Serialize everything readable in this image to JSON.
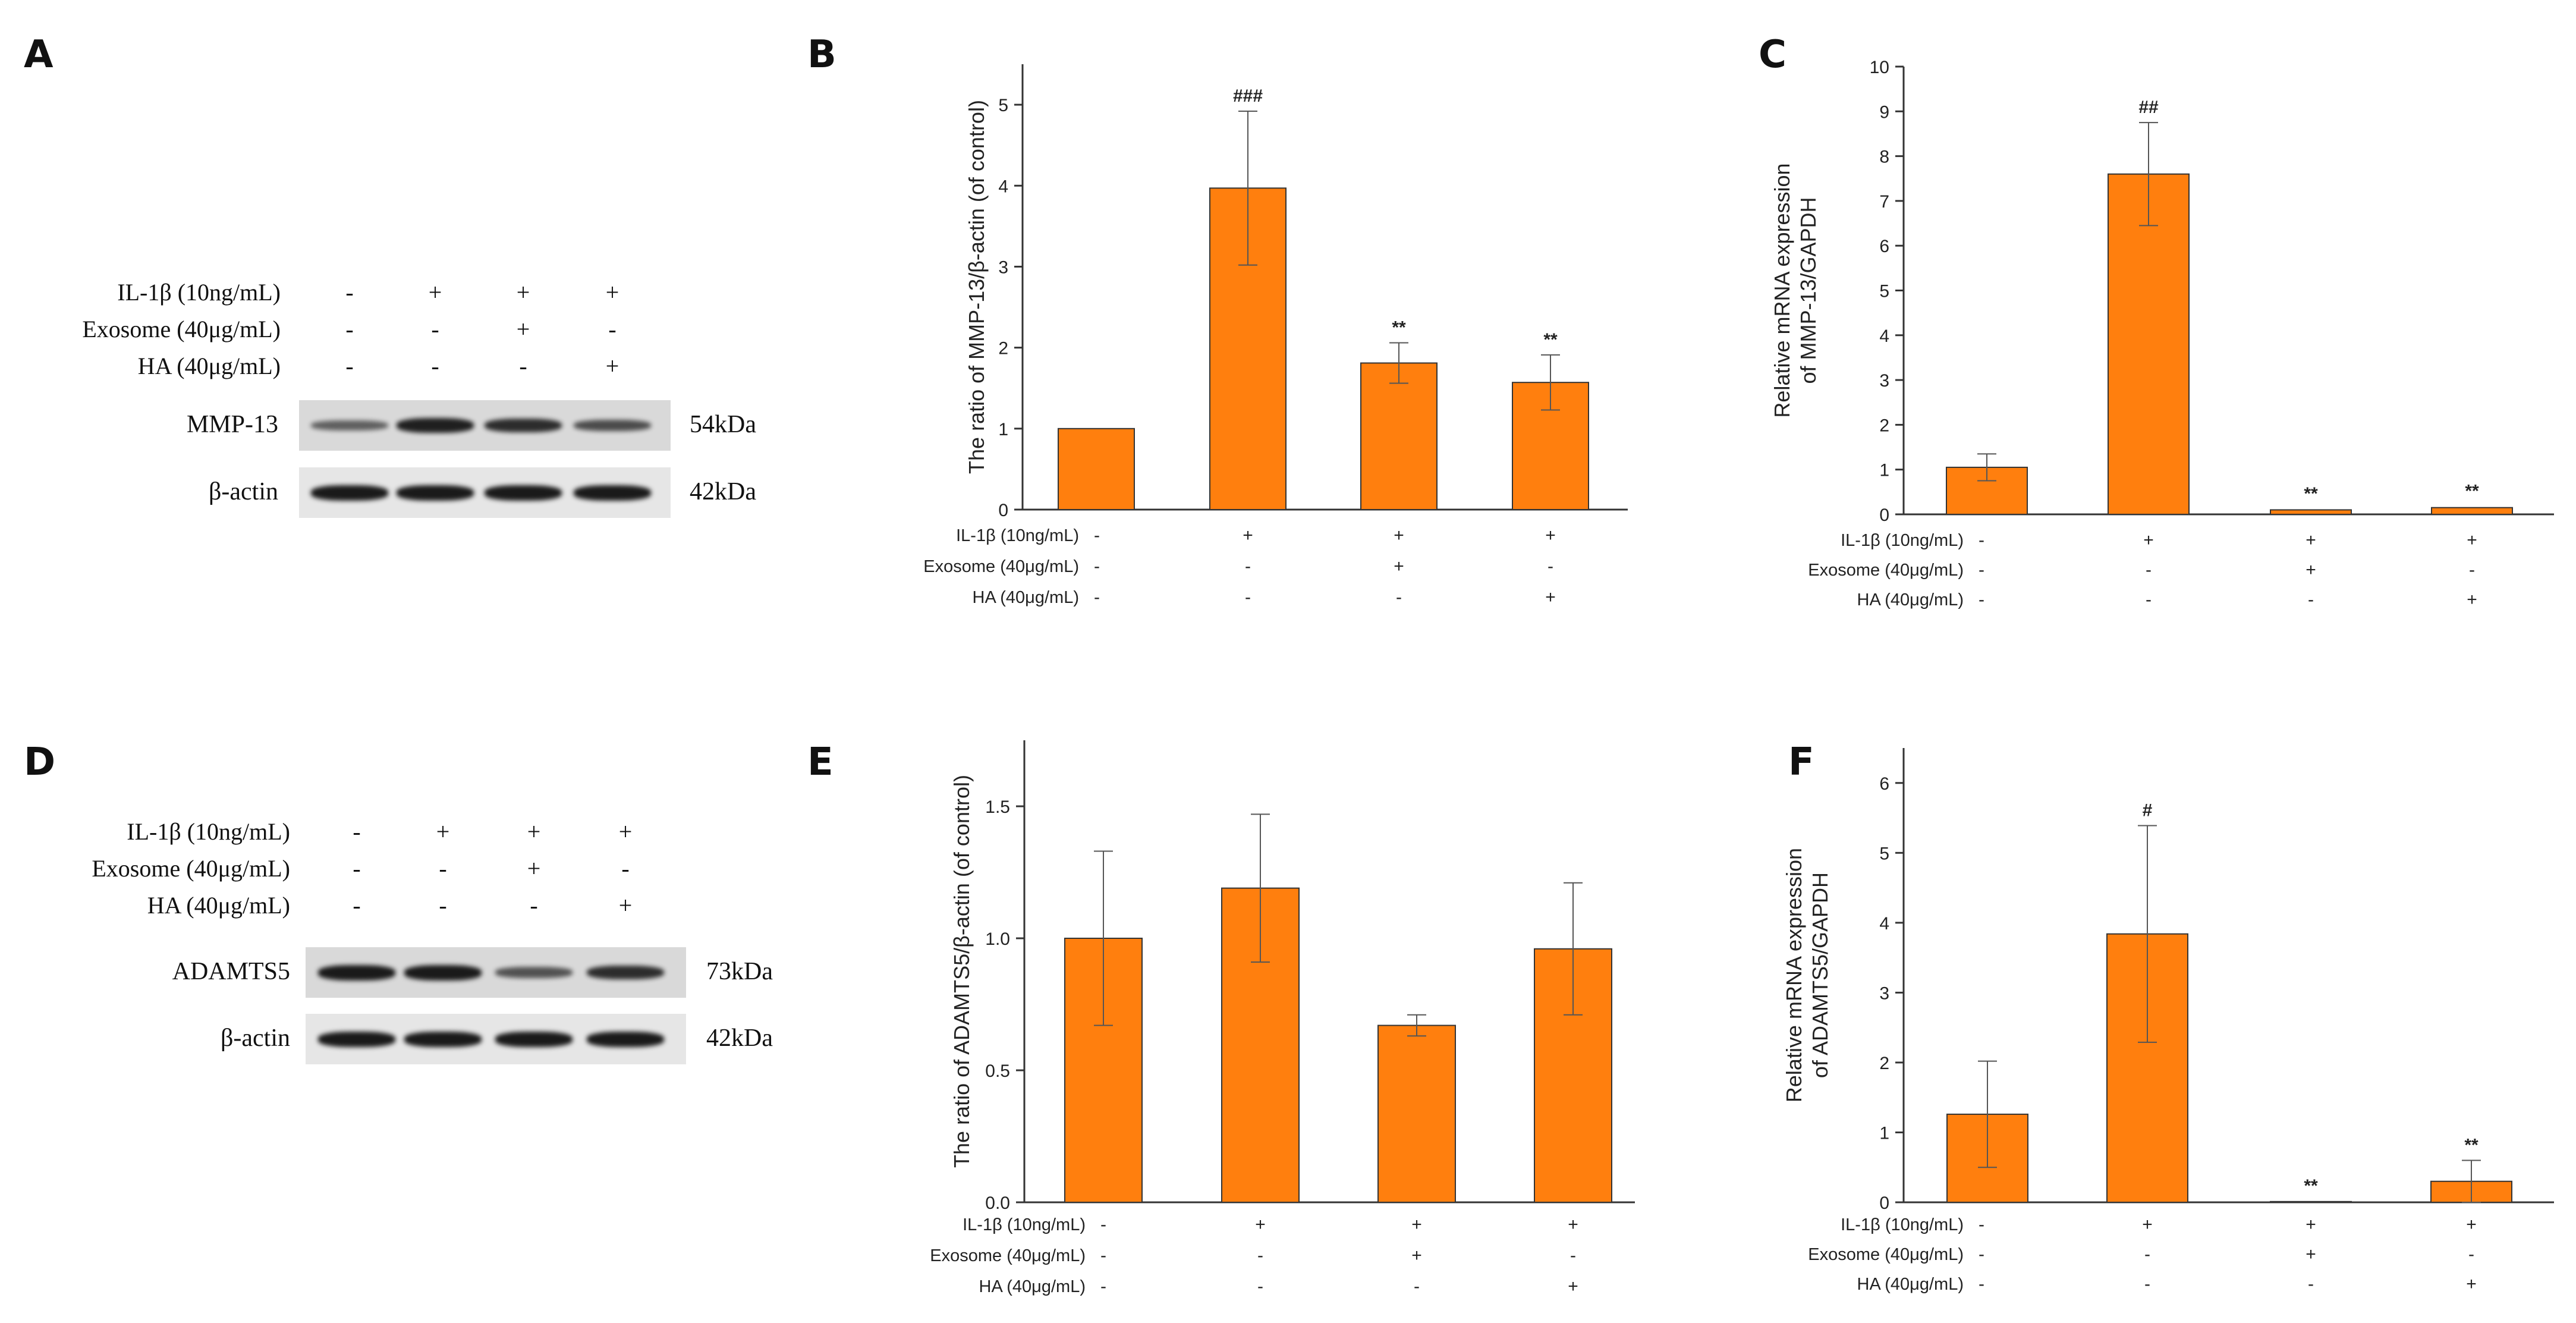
{
  "panels": {
    "A": {
      "letter": "A",
      "conditions": [
        {
          "label": "IL-1β (10ng/mL)",
          "signs": [
            "-",
            "+",
            "+",
            "+"
          ]
        },
        {
          "label": "Exosome (40μg/mL)",
          "signs": [
            "-",
            "-",
            "+",
            "-"
          ]
        },
        {
          "label": "HA (40μg/mL)",
          "signs": [
            "-",
            "-",
            "-",
            "+"
          ]
        }
      ],
      "bands": [
        {
          "label": "MMP-13",
          "kda": "54kDa",
          "intensity": [
            0.45,
            0.95,
            0.85,
            0.6
          ]
        },
        {
          "label": "β-actin",
          "kda": "42kDa",
          "intensity": [
            1,
            1,
            1,
            1
          ]
        }
      ]
    },
    "D": {
      "letter": "D",
      "conditions": [
        {
          "label": "IL-1β (10ng/mL)",
          "signs": [
            "-",
            "+",
            "+",
            "+"
          ]
        },
        {
          "label": "Exosome (40μg/mL)",
          "signs": [
            "-",
            "-",
            "+",
            "-"
          ]
        },
        {
          "label": "HA (40μg/mL)",
          "signs": [
            "-",
            "-",
            "-",
            "+"
          ]
        }
      ],
      "bands": [
        {
          "label": "ADAMTS5",
          "kda": "73kDa",
          "intensity": [
            1,
            1,
            0.55,
            0.85
          ]
        },
        {
          "label": "β-actin",
          "kda": "42kDa",
          "intensity": [
            1,
            1,
            1,
            1
          ]
        }
      ]
    }
  },
  "colors": {
    "bar": "#FF7F0E",
    "bar_edge": "#333333",
    "axis": "#333333"
  },
  "chart_data": [
    {
      "panel": "B",
      "type": "bar",
      "ylabel": "The ratio of MMP-13/β-actin (of control)",
      "ylim": [
        0,
        5.5
      ],
      "yticks": [
        0,
        1,
        2,
        3,
        4,
        5
      ],
      "ytick_labels": [
        "0",
        "1",
        "2",
        "3",
        "4",
        "5"
      ],
      "values": [
        1.0,
        3.97,
        1.81,
        1.57
      ],
      "errors": [
        0.03,
        0.95,
        0.25,
        0.34
      ],
      "annotations": [
        "",
        "###",
        "**",
        "**"
      ],
      "conditions": [
        {
          "label": "IL-1β (10ng/mL)",
          "signs": [
            "-",
            "+",
            "+",
            "+"
          ]
        },
        {
          "label": "Exosome (40μg/mL)",
          "signs": [
            "-",
            "-",
            "+",
            "-"
          ]
        },
        {
          "label": "HA (40μg/mL)",
          "signs": [
            "-",
            "-",
            "-",
            "+"
          ]
        }
      ]
    },
    {
      "panel": "C",
      "type": "bar",
      "ylabel": [
        "Relative mRNA expression",
        "of MMP-13/GAPDH"
      ],
      "ylim": [
        0,
        10
      ],
      "yticks": [
        0,
        1,
        2,
        3,
        4,
        5,
        6,
        7,
        8,
        9,
        10
      ],
      "ytick_labels": [
        "0",
        "1",
        "2",
        "3",
        "4",
        "5",
        "6",
        "7",
        "8",
        "9",
        "10"
      ],
      "values": [
        1.05,
        7.6,
        0.1,
        0.15
      ],
      "errors": [
        0.3,
        1.15,
        0.02,
        0.03
      ],
      "annotations": [
        "",
        "##",
        "**",
        "**"
      ],
      "conditions": [
        {
          "label": "IL-1β (10ng/mL)",
          "signs": [
            "-",
            "+",
            "+",
            "+"
          ]
        },
        {
          "label": "Exosome (40μg/mL)",
          "signs": [
            "-",
            "-",
            "+",
            "-"
          ]
        },
        {
          "label": "HA (40μg/mL)",
          "signs": [
            "-",
            "-",
            "-",
            "+"
          ]
        }
      ]
    },
    {
      "panel": "E",
      "type": "bar",
      "ylabel": "The ratio of ADAMTS5/β-actin (of control)",
      "ylim": [
        0,
        1.75
      ],
      "yticks": [
        0,
        0.5,
        1,
        1.5
      ],
      "ytick_labels": [
        "0.0",
        "0.5",
        "1.0",
        "1.5"
      ],
      "values": [
        1.0,
        1.19,
        0.67,
        0.96
      ],
      "errors": [
        0.33,
        0.28,
        0.04,
        0.25
      ],
      "annotations": [
        "",
        "",
        "",
        ""
      ],
      "conditions": [
        {
          "label": "IL-1β (10ng/mL)",
          "signs": [
            "-",
            "+",
            "+",
            "+"
          ]
        },
        {
          "label": "Exosome (40μg/mL)",
          "signs": [
            "-",
            "-",
            "+",
            "-"
          ]
        },
        {
          "label": "HA (40μg/mL)",
          "signs": [
            "-",
            "-",
            "-",
            "+"
          ]
        }
      ]
    },
    {
      "panel": "F",
      "type": "bar",
      "ylabel": [
        "Relative mRNA expression",
        "of ADAMTS5/GAPDH"
      ],
      "ylim": [
        0,
        6.5
      ],
      "yticks": [
        0,
        1,
        2,
        3,
        4,
        5,
        6
      ],
      "ytick_labels": [
        "0",
        "1",
        "2",
        "3",
        "4",
        "5",
        "6"
      ],
      "values": [
        1.26,
        3.84,
        0.01,
        0.3
      ],
      "errors": [
        0.76,
        1.55,
        0.005,
        0.3
      ],
      "annotations": [
        "",
        "#",
        "**",
        "**"
      ],
      "conditions": [
        {
          "label": "IL-1β (10ng/mL)",
          "signs": [
            "-",
            "+",
            "+",
            "+"
          ]
        },
        {
          "label": "Exosome (40μg/mL)",
          "signs": [
            "-",
            "-",
            "+",
            "-"
          ]
        },
        {
          "label": "HA (40μg/mL)",
          "signs": [
            "-",
            "-",
            "-",
            "+"
          ]
        }
      ]
    }
  ]
}
